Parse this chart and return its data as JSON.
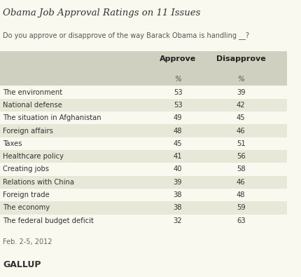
{
  "title": "Obama Job Approval Ratings on 11 Issues",
  "subtitle": "Do you approve or disapprove of the way Barack Obama is handling __?",
  "col_headers": [
    "Approve",
    "Disapprove"
  ],
  "col_subheaders": [
    "%",
    "%"
  ],
  "rows": [
    [
      "The environment",
      53,
      39
    ],
    [
      "National defense",
      53,
      42
    ],
    [
      "The situation in Afghanistan",
      49,
      45
    ],
    [
      "Foreign affairs",
      48,
      46
    ],
    [
      "Taxes",
      45,
      51
    ],
    [
      "Healthcare policy",
      41,
      56
    ],
    [
      "Creating jobs",
      40,
      58
    ],
    [
      "Relations with China",
      39,
      46
    ],
    [
      "Foreign trade",
      38,
      48
    ],
    [
      "The economy",
      38,
      59
    ],
    [
      "The federal budget deficit",
      32,
      63
    ]
  ],
  "footer": "Feb. 2-5, 2012",
  "source": "GALLUP",
  "bg_color": "#f9f9f0",
  "row_shaded_color": "#e8e8d8",
  "row_white_color": "#f9f9f0",
  "header_shaded_color": "#d0d0c0",
  "text_color": "#333333",
  "title_color": "#333333"
}
